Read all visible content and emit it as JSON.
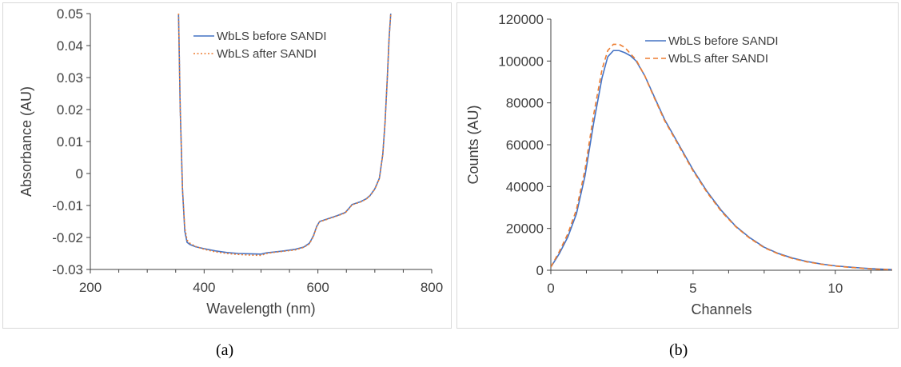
{
  "chart_data": [
    {
      "type": "line",
      "panel_label": "(a)",
      "xlabel": "Wavelength (nm)",
      "ylabel": "Absorbance (AU)",
      "xlim": [
        200,
        800
      ],
      "ylim": [
        -0.03,
        0.05
      ],
      "xticks": [
        200,
        400,
        600,
        800
      ],
      "yticks": [
        -0.03,
        -0.02,
        -0.01,
        0,
        0.01,
        0.02,
        0.03,
        0.04,
        0.05
      ],
      "xtick_labels": [
        "200",
        "400",
        "600",
        "800"
      ],
      "ytick_labels": [
        "-0.03",
        "-0.02",
        "-0.01",
        "0",
        "0.01",
        "0.02",
        "0.03",
        "0.04",
        "0.05"
      ],
      "legend_position": "top-right",
      "grid": false,
      "series": [
        {
          "name": "WbLS before SANDI",
          "color": "#4472C4",
          "style": "solid",
          "x": [
            355,
            358,
            362,
            366,
            370,
            375,
            385,
            400,
            420,
            440,
            460,
            480,
            500,
            510,
            520,
            540,
            560,
            575,
            585,
            592,
            598,
            603,
            610,
            620,
            635,
            648,
            655,
            660,
            665,
            675,
            685,
            692,
            700,
            708,
            714,
            718,
            722,
            725,
            728
          ],
          "y": [
            0.05,
            0.02,
            -0.005,
            -0.018,
            -0.0215,
            -0.0222,
            -0.0229,
            -0.0235,
            -0.0242,
            -0.0247,
            -0.025,
            -0.0251,
            -0.0252,
            -0.0248,
            -0.0246,
            -0.0242,
            -0.0237,
            -0.023,
            -0.0218,
            -0.0195,
            -0.0165,
            -0.015,
            -0.0146,
            -0.014,
            -0.0131,
            -0.0122,
            -0.0108,
            -0.0097,
            -0.0094,
            -0.0088,
            -0.0079,
            -0.0068,
            -0.0048,
            -0.0015,
            0.006,
            0.016,
            0.03,
            0.042,
            0.05
          ]
        },
        {
          "name": "WbLS after SANDI",
          "color": "#ED7D31",
          "style": "dotted",
          "x": [
            355,
            358,
            362,
            366,
            370,
            375,
            385,
            400,
            420,
            440,
            460,
            480,
            500,
            510,
            520,
            540,
            560,
            575,
            585,
            592,
            598,
            603,
            610,
            620,
            635,
            648,
            655,
            660,
            665,
            675,
            685,
            692,
            700,
            708,
            714,
            718,
            722,
            725,
            728
          ],
          "y": [
            0.05,
            0.02,
            -0.005,
            -0.017,
            -0.0208,
            -0.0218,
            -0.0228,
            -0.0237,
            -0.0245,
            -0.025,
            -0.0253,
            -0.0255,
            -0.0256,
            -0.025,
            -0.0247,
            -0.0243,
            -0.0239,
            -0.0231,
            -0.022,
            -0.0197,
            -0.0166,
            -0.0151,
            -0.0147,
            -0.0141,
            -0.0132,
            -0.0123,
            -0.0109,
            -0.0098,
            -0.0095,
            -0.0089,
            -0.008,
            -0.0069,
            -0.0049,
            -0.0016,
            0.006,
            0.016,
            0.03,
            0.042,
            0.05
          ]
        }
      ]
    },
    {
      "type": "line",
      "panel_label": "(b)",
      "xlabel": "Channels",
      "ylabel": "Counts (AU)",
      "xlim": [
        0,
        12
      ],
      "ylim": [
        0,
        120000
      ],
      "xticks": [
        0,
        5,
        10
      ],
      "yticks": [
        0,
        20000,
        40000,
        60000,
        80000,
        100000,
        120000
      ],
      "xtick_labels": [
        "0",
        "5",
        "10"
      ],
      "ytick_labels": [
        "0",
        "20000",
        "40000",
        "60000",
        "80000",
        "100000",
        "120000"
      ],
      "legend_position": "top-right",
      "grid": false,
      "series": [
        {
          "name": "WbLS before SANDI",
          "color": "#4472C4",
          "style": "solid",
          "x": [
            0,
            0.3,
            0.6,
            0.9,
            1.2,
            1.5,
            1.8,
            2.0,
            2.2,
            2.4,
            2.6,
            2.8,
            3.0,
            3.3,
            3.6,
            4.0,
            4.5,
            5.0,
            5.5,
            6.0,
            6.5,
            7.0,
            7.5,
            8.0,
            8.5,
            9.0,
            9.5,
            10.0,
            10.5,
            11.0,
            11.5,
            12.0
          ],
          "y": [
            1500,
            8000,
            16000,
            27000,
            45000,
            70000,
            92000,
            102000,
            105000,
            105000,
            104000,
            102500,
            100000,
            93000,
            84000,
            72000,
            60000,
            48000,
            37500,
            28500,
            21000,
            15500,
            11000,
            8000,
            5800,
            4200,
            3000,
            2100,
            1500,
            1000,
            600,
            300
          ]
        },
        {
          "name": "WbLS after SANDI",
          "color": "#ED7D31",
          "style": "dashed",
          "x": [
            0,
            0.3,
            0.6,
            0.9,
            1.2,
            1.5,
            1.8,
            2.0,
            2.2,
            2.4,
            2.6,
            2.8,
            3.0,
            3.3,
            3.6,
            4.0,
            4.5,
            5.0,
            5.5,
            6.0,
            6.5,
            7.0,
            7.5,
            8.0,
            8.5,
            9.0,
            9.5,
            10.0,
            10.5,
            11.0,
            11.5,
            12.0
          ],
          "y": [
            1500,
            9000,
            17500,
            29000,
            48000,
            74000,
            96000,
            105000,
            108000,
            108000,
            106500,
            103500,
            100500,
            93000,
            83500,
            71500,
            59500,
            47500,
            37000,
            28000,
            20800,
            15200,
            10800,
            7800,
            5600,
            4000,
            2900,
            2000,
            1400,
            900,
            500,
            250
          ]
        }
      ]
    }
  ],
  "captions": {
    "a": "(a)",
    "b": "(b)"
  }
}
